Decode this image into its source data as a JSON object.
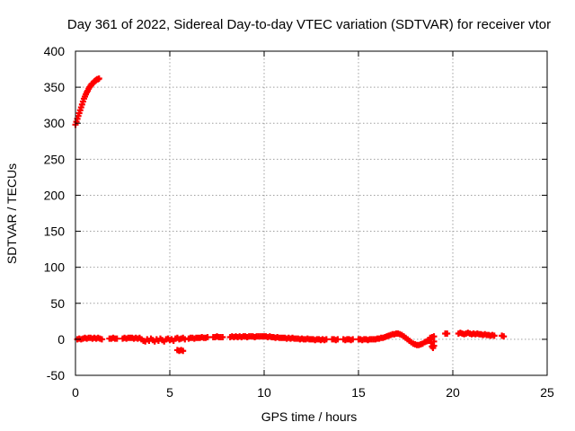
{
  "chart_data": {
    "type": "scatter",
    "title": "Day 361 of 2022, Sidereal Day-to-day VTEC variation (SDTVAR) for receiver vtor",
    "xlabel": "GPS time / hours",
    "ylabel": "SDTVAR / TECUs",
    "xlim": [
      0,
      25
    ],
    "ylim": [
      -50,
      400
    ],
    "xticks": [
      0,
      5,
      10,
      15,
      20,
      25
    ],
    "yticks": [
      -50,
      0,
      50,
      100,
      150,
      200,
      250,
      300,
      350,
      400
    ],
    "grid": true,
    "marker": "plus",
    "colors": {
      "series": "#ff0000",
      "grid": "#a0a0a0",
      "axes": "#000000"
    },
    "series": [
      {
        "points": [
          [
            0.0,
            298
          ],
          [
            0.05,
            302
          ],
          [
            0.1,
            306
          ],
          [
            0.15,
            310
          ],
          [
            0.2,
            314
          ],
          [
            0.25,
            318
          ],
          [
            0.3,
            322
          ],
          [
            0.35,
            326
          ],
          [
            0.4,
            330
          ],
          [
            0.45,
            334
          ],
          [
            0.5,
            337
          ],
          [
            0.55,
            340
          ],
          [
            0.6,
            343
          ],
          [
            0.65,
            345
          ],
          [
            0.7,
            348
          ],
          [
            0.75,
            350
          ],
          [
            0.8,
            352
          ],
          [
            0.85,
            354
          ],
          [
            0.9,
            355
          ],
          [
            0.95,
            356
          ],
          [
            1.0,
            358
          ],
          [
            1.05,
            359
          ],
          [
            1.1,
            360
          ],
          [
            1.15,
            361
          ],
          [
            1.2,
            361
          ],
          [
            1.25,
            362
          ],
          [
            0.1,
            0
          ],
          [
            0.2,
            1
          ],
          [
            0.3,
            0
          ],
          [
            0.4,
            1
          ],
          [
            0.5,
            2
          ],
          [
            0.6,
            1
          ],
          [
            0.7,
            2
          ],
          [
            0.8,
            2
          ],
          [
            0.9,
            1
          ],
          [
            1.0,
            2
          ],
          [
            1.1,
            1
          ],
          [
            1.2,
            2
          ],
          [
            1.3,
            1
          ],
          [
            1.4,
            0
          ],
          [
            1.8,
            1
          ],
          [
            1.9,
            1
          ],
          [
            2.0,
            2
          ],
          [
            2.1,
            1
          ],
          [
            2.2,
            1
          ],
          [
            2.5,
            1
          ],
          [
            2.6,
            2
          ],
          [
            2.7,
            1
          ],
          [
            2.8,
            2
          ],
          [
            2.9,
            2
          ],
          [
            3.0,
            2
          ],
          [
            3.1,
            1
          ],
          [
            3.2,
            2
          ],
          [
            3.3,
            1
          ],
          [
            3.4,
            2
          ],
          [
            3.5,
            0
          ],
          [
            3.6,
            -2
          ],
          [
            3.7,
            -3
          ],
          [
            3.8,
            0
          ],
          [
            3.9,
            -2
          ],
          [
            4.0,
            1
          ],
          [
            4.1,
            -1
          ],
          [
            4.2,
            -3
          ],
          [
            4.3,
            0
          ],
          [
            4.4,
            -2
          ],
          [
            4.5,
            1
          ],
          [
            4.6,
            -1
          ],
          [
            4.7,
            -3
          ],
          [
            4.8,
            0
          ],
          [
            4.9,
            1
          ],
          [
            5.0,
            -1
          ],
          [
            5.1,
            0
          ],
          [
            5.2,
            -2
          ],
          [
            5.3,
            1
          ],
          [
            5.4,
            2
          ],
          [
            5.5,
            0
          ],
          [
            5.6,
            1
          ],
          [
            5.7,
            2
          ],
          [
            5.4,
            -15
          ],
          [
            5.5,
            -16
          ],
          [
            5.6,
            -15
          ],
          [
            5.7,
            -16
          ],
          [
            5.8,
            0
          ],
          [
            6.0,
            1
          ],
          [
            6.1,
            2
          ],
          [
            6.2,
            2
          ],
          [
            6.3,
            1
          ],
          [
            6.4,
            2
          ],
          [
            6.5,
            2
          ],
          [
            6.6,
            2
          ],
          [
            6.7,
            3
          ],
          [
            6.8,
            2
          ],
          [
            6.9,
            2
          ],
          [
            7.0,
            3
          ],
          [
            7.3,
            3
          ],
          [
            7.4,
            3
          ],
          [
            7.5,
            4
          ],
          [
            7.6,
            3
          ],
          [
            7.7,
            3
          ],
          [
            7.8,
            3
          ],
          [
            8.2,
            3
          ],
          [
            8.3,
            4
          ],
          [
            8.4,
            3
          ],
          [
            8.5,
            4
          ],
          [
            8.6,
            3
          ],
          [
            8.7,
            4
          ],
          [
            8.8,
            3
          ],
          [
            8.9,
            4
          ],
          [
            9.0,
            4
          ],
          [
            9.1,
            3
          ],
          [
            9.2,
            4
          ],
          [
            9.3,
            4
          ],
          [
            9.4,
            4
          ],
          [
            9.5,
            3
          ],
          [
            9.6,
            4
          ],
          [
            9.7,
            4
          ],
          [
            9.8,
            4
          ],
          [
            9.9,
            4
          ],
          [
            10.0,
            4
          ],
          [
            10.1,
            4
          ],
          [
            10.2,
            3
          ],
          [
            10.3,
            4
          ],
          [
            10.4,
            3
          ],
          [
            10.5,
            3
          ],
          [
            10.6,
            2
          ],
          [
            10.7,
            3
          ],
          [
            10.8,
            2
          ],
          [
            10.9,
            2
          ],
          [
            11.0,
            2
          ],
          [
            11.1,
            2
          ],
          [
            11.2,
            1
          ],
          [
            11.3,
            2
          ],
          [
            11.4,
            1
          ],
          [
            11.5,
            2
          ],
          [
            11.6,
            1
          ],
          [
            11.7,
            1
          ],
          [
            11.8,
            1
          ],
          [
            11.9,
            0
          ],
          [
            12.0,
            1
          ],
          [
            12.1,
            0
          ],
          [
            12.2,
            0
          ],
          [
            12.3,
            1
          ],
          [
            12.4,
            0
          ],
          [
            12.5,
            0
          ],
          [
            12.6,
            0
          ],
          [
            12.7,
            -1
          ],
          [
            12.8,
            0
          ],
          [
            12.9,
            0
          ],
          [
            13.0,
            -1
          ],
          [
            13.1,
            0
          ],
          [
            13.2,
            -1
          ],
          [
            13.3,
            0
          ],
          [
            13.6,
            0
          ],
          [
            13.7,
            0
          ],
          [
            13.8,
            -1
          ],
          [
            13.9,
            0
          ],
          [
            14.2,
            0
          ],
          [
            14.3,
            -1
          ],
          [
            14.4,
            0
          ],
          [
            14.5,
            0
          ],
          [
            14.6,
            -1
          ],
          [
            14.7,
            0
          ],
          [
            15.0,
            0
          ],
          [
            15.1,
            0
          ],
          [
            15.2,
            -1
          ],
          [
            15.3,
            0
          ],
          [
            15.4,
            0
          ],
          [
            15.5,
            -1
          ],
          [
            15.6,
            0
          ],
          [
            15.7,
            0
          ],
          [
            15.8,
            0
          ],
          [
            15.9,
            0
          ],
          [
            16.0,
            1
          ],
          [
            16.1,
            1
          ],
          [
            16.2,
            2
          ],
          [
            16.3,
            2
          ],
          [
            16.4,
            3
          ],
          [
            16.5,
            4
          ],
          [
            16.6,
            5
          ],
          [
            16.7,
            6
          ],
          [
            16.8,
            7
          ],
          [
            16.9,
            7
          ],
          [
            17.0,
            8
          ],
          [
            17.1,
            8
          ],
          [
            17.2,
            7
          ],
          [
            17.3,
            6
          ],
          [
            17.4,
            4
          ],
          [
            17.5,
            2
          ],
          [
            17.6,
            0
          ],
          [
            17.7,
            -2
          ],
          [
            17.8,
            -4
          ],
          [
            17.9,
            -6
          ],
          [
            18.0,
            -7
          ],
          [
            18.1,
            -8
          ],
          [
            18.2,
            -8
          ],
          [
            18.3,
            -7
          ],
          [
            18.4,
            -6
          ],
          [
            18.5,
            -4
          ],
          [
            18.6,
            -3
          ],
          [
            18.7,
            -2
          ],
          [
            18.8,
            0
          ],
          [
            18.8,
            2
          ],
          [
            18.85,
            -5
          ],
          [
            18.9,
            -10
          ],
          [
            18.95,
            -12
          ],
          [
            19.0,
            -9
          ],
          [
            18.9,
            3
          ],
          [
            19.0,
            4
          ],
          [
            19.0,
            -3
          ],
          [
            19.6,
            8
          ],
          [
            19.7,
            8
          ],
          [
            20.3,
            8
          ],
          [
            20.4,
            9
          ],
          [
            20.5,
            8
          ],
          [
            20.6,
            7
          ],
          [
            20.7,
            8
          ],
          [
            20.8,
            9
          ],
          [
            20.9,
            8
          ],
          [
            21.0,
            7
          ],
          [
            21.1,
            8
          ],
          [
            21.2,
            7
          ],
          [
            21.3,
            8
          ],
          [
            21.4,
            7
          ],
          [
            21.5,
            7
          ],
          [
            21.6,
            6
          ],
          [
            21.7,
            7
          ],
          [
            21.8,
            6
          ],
          [
            21.9,
            6
          ],
          [
            22.0,
            5
          ],
          [
            22.1,
            6
          ],
          [
            22.2,
            5
          ],
          [
            22.6,
            5
          ],
          [
            22.7,
            4
          ]
        ]
      }
    ]
  }
}
